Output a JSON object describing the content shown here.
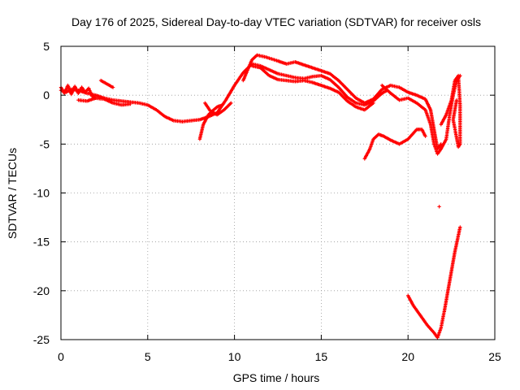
{
  "chart_data": {
    "type": "scatter",
    "title": "Day 176 of 2025, Sidereal Day-to-day VTEC variation (SDTVAR) for receiver osls",
    "xlabel": "GPS time / hours",
    "ylabel": "SDTVAR / TECUs",
    "xlim": [
      0,
      25
    ],
    "ylim": [
      -25,
      5
    ],
    "xticks": [
      "0",
      "5",
      "10",
      "15",
      "20",
      "25"
    ],
    "yticks": [
      "5",
      "0",
      "-5",
      "-10",
      "-15",
      "-20",
      "-25"
    ],
    "grid": true,
    "marker": "+",
    "color": "#ff0000",
    "series": [
      {
        "name": "arc-main",
        "points": [
          [
            0,
            0.5
          ],
          [
            0.3,
            0.3
          ],
          [
            0.6,
            0.6
          ],
          [
            1,
            0.5
          ],
          [
            1.5,
            0.2
          ],
          [
            2,
            0
          ],
          [
            2.5,
            -0.3
          ],
          [
            3,
            -0.5
          ],
          [
            3.5,
            -0.6
          ],
          [
            4,
            -0.7
          ],
          [
            4.5,
            -0.8
          ],
          [
            5,
            -1.0
          ],
          [
            5.5,
            -1.5
          ],
          [
            6,
            -2.2
          ],
          [
            6.5,
            -2.6
          ],
          [
            7,
            -2.7
          ],
          [
            7.5,
            -2.6
          ],
          [
            8,
            -2.5
          ],
          [
            8.5,
            -2.2
          ],
          [
            9,
            -1.8
          ],
          [
            9.5,
            -0.5
          ],
          [
            10,
            1.0
          ],
          [
            10.5,
            2.3
          ],
          [
            11,
            3.2
          ],
          [
            11.5,
            3.0
          ],
          [
            12,
            2.6
          ],
          [
            12.5,
            2.2
          ],
          [
            13,
            2.0
          ],
          [
            13.5,
            1.8
          ],
          [
            14,
            1.7
          ],
          [
            14.5,
            1.9
          ],
          [
            15,
            2.0
          ],
          [
            15.5,
            1.6
          ],
          [
            16,
            0.8
          ],
          [
            16.5,
            -0.2
          ],
          [
            17,
            -0.8
          ],
          [
            17.5,
            -1.0
          ],
          [
            18,
            -0.6
          ],
          [
            18.5,
            0.2
          ],
          [
            18.8,
            0.5
          ]
        ]
      },
      {
        "name": "arc-wiggle",
        "points": [
          [
            0,
            0.8
          ],
          [
            0.2,
            0.2
          ],
          [
            0.4,
            1.0
          ],
          [
            0.6,
            0.1
          ],
          [
            0.8,
            0.9
          ],
          [
            1,
            0.2
          ],
          [
            1.2,
            0.8
          ],
          [
            1.4,
            0.3
          ],
          [
            1.6,
            0.7
          ],
          [
            1.8,
            -0.1
          ],
          [
            2,
            -0.3
          ]
        ]
      },
      {
        "name": "arc-short",
        "points": [
          [
            2.3,
            1.5
          ],
          [
            2.6,
            1.2
          ],
          [
            3,
            0.8
          ]
        ]
      },
      {
        "name": "arc-low",
        "points": [
          [
            1,
            -0.5
          ],
          [
            1.5,
            -0.6
          ],
          [
            2,
            -0.3
          ],
          [
            2.5,
            -0.4
          ],
          [
            3,
            -0.8
          ],
          [
            3.5,
            -1.0
          ],
          [
            4,
            -0.9
          ]
        ]
      },
      {
        "name": "arc-rise",
        "points": [
          [
            8,
            -4.5
          ],
          [
            8.2,
            -3.0
          ],
          [
            8.5,
            -2.0
          ],
          [
            8.8,
            -1.5
          ],
          [
            9,
            -1.2
          ],
          [
            9.3,
            -1.0
          ]
        ]
      },
      {
        "name": "arc-dip",
        "points": [
          [
            8.3,
            -0.8
          ],
          [
            8.6,
            -1.6
          ],
          [
            9,
            -2.0
          ],
          [
            9.4,
            -1.5
          ],
          [
            9.8,
            -0.8
          ]
        ]
      },
      {
        "name": "arc-upper",
        "points": [
          [
            10.5,
            1.5
          ],
          [
            11,
            3.6
          ],
          [
            11.3,
            4.1
          ],
          [
            11.8,
            3.9
          ],
          [
            12.5,
            3.5
          ],
          [
            13,
            3.2
          ],
          [
            13.5,
            3.4
          ],
          [
            14,
            3.1
          ],
          [
            14.5,
            2.8
          ],
          [
            15,
            2.5
          ],
          [
            15.5,
            2.2
          ],
          [
            16,
            1.5
          ],
          [
            16.5,
            0.6
          ],
          [
            17,
            -0.3
          ],
          [
            17.5,
            -0.8
          ],
          [
            18,
            -0.4
          ],
          [
            18.5,
            0.6
          ],
          [
            19,
            1.0
          ],
          [
            19.5,
            0.8
          ],
          [
            20,
            0.3
          ],
          [
            20.5,
            0
          ],
          [
            21,
            -0.4
          ],
          [
            21.3,
            -1.5
          ],
          [
            21.5,
            -3.5
          ],
          [
            21.7,
            -5.5
          ],
          [
            21.9,
            -5.0
          ]
        ]
      },
      {
        "name": "arc-mid",
        "points": [
          [
            11,
            3.0
          ],
          [
            11.5,
            2.8
          ],
          [
            12,
            2.0
          ],
          [
            12.5,
            1.6
          ],
          [
            13,
            1.5
          ],
          [
            13.5,
            1.4
          ],
          [
            14,
            1.5
          ],
          [
            14.5,
            1.3
          ],
          [
            15,
            1.0
          ],
          [
            15.5,
            0.7
          ],
          [
            16,
            0.3
          ],
          [
            16.5,
            -0.6
          ],
          [
            17,
            -1.2
          ],
          [
            17.5,
            -1.5
          ],
          [
            18,
            -0.8
          ]
        ]
      },
      {
        "name": "arc-late",
        "points": [
          [
            18.5,
            1.0
          ],
          [
            19,
            0.2
          ],
          [
            19.5,
            -0.5
          ],
          [
            20,
            -0.3
          ],
          [
            20.5,
            -0.8
          ],
          [
            21,
            -1.5
          ],
          [
            21.3,
            -3.0
          ],
          [
            21.5,
            -5.0
          ],
          [
            21.7,
            -6.0
          ],
          [
            21.9,
            -5.5
          ],
          [
            22.2,
            -4.5
          ],
          [
            22.4,
            -2.0
          ],
          [
            22.6,
            0
          ],
          [
            22.8,
            1.5
          ],
          [
            23,
            2.0
          ]
        ]
      },
      {
        "name": "arc-neg5",
        "points": [
          [
            17.5,
            -6.5
          ],
          [
            17.8,
            -5.5
          ],
          [
            18,
            -4.5
          ],
          [
            18.3,
            -4.0
          ],
          [
            18.6,
            -4.2
          ],
          [
            19,
            -4.6
          ],
          [
            19.5,
            -5.0
          ],
          [
            20,
            -4.5
          ],
          [
            20.5,
            -3.5
          ],
          [
            20.8,
            -3.5
          ],
          [
            21,
            -4.2
          ]
        ]
      },
      {
        "name": "arc-right",
        "points": [
          [
            21.9,
            -3.0
          ],
          [
            22.2,
            -2.0
          ],
          [
            22.5,
            -0.5
          ],
          [
            22.7,
            1.5
          ],
          [
            22.9,
            2.0
          ],
          [
            23,
            -1.0
          ],
          [
            23,
            -5.0
          ],
          [
            22.9,
            -5.3
          ],
          [
            22.6,
            -2.5
          ],
          [
            22.8,
            -0.5
          ]
        ]
      },
      {
        "name": "arc-isolated",
        "points": [
          [
            21.8,
            -11.4
          ]
        ]
      },
      {
        "name": "arc-deep",
        "points": [
          [
            20,
            -20.5
          ],
          [
            20.3,
            -21.5
          ],
          [
            20.7,
            -22.5
          ],
          [
            21.1,
            -23.5
          ],
          [
            21.5,
            -24.3
          ],
          [
            21.7,
            -24.8
          ],
          [
            21.9,
            -23.8
          ],
          [
            22.1,
            -22.0
          ],
          [
            22.3,
            -20.0
          ],
          [
            22.5,
            -18.0
          ],
          [
            22.7,
            -16.0
          ],
          [
            23,
            -13.5
          ]
        ]
      }
    ]
  }
}
